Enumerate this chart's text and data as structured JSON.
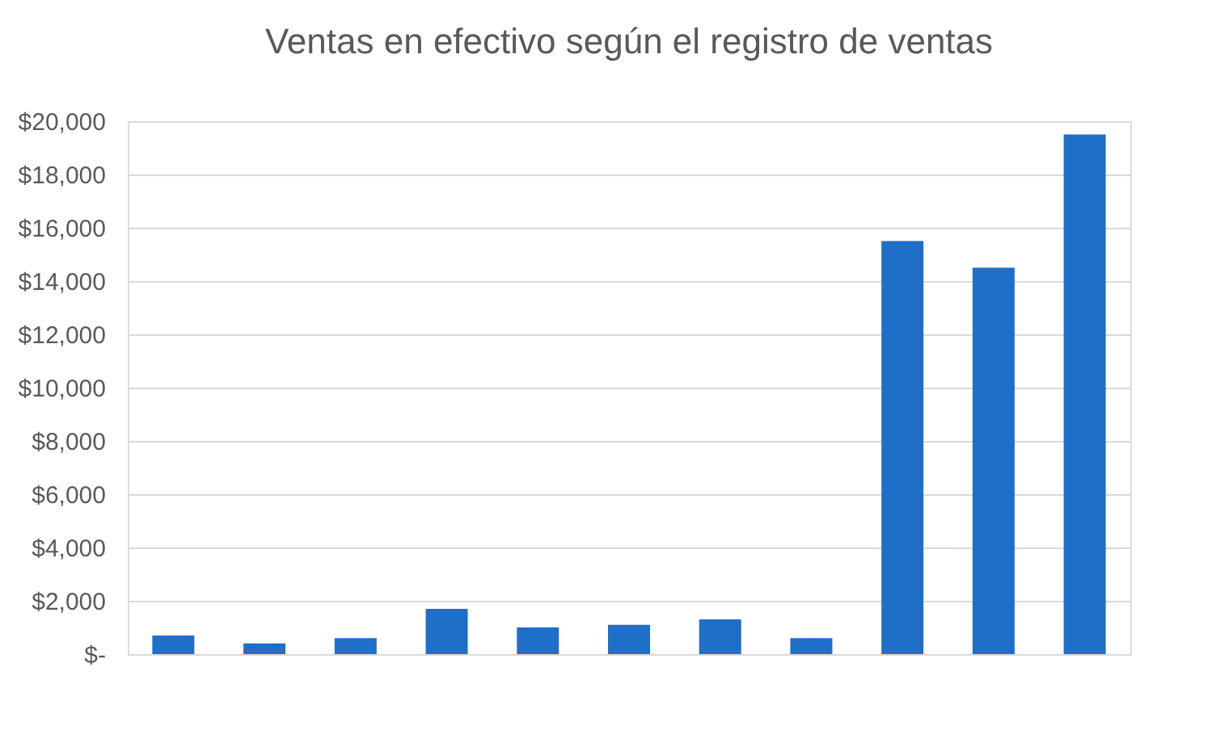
{
  "chart_data": {
    "type": "bar",
    "title": "Ventas en efectivo según el registro de ventas",
    "categories": [
      null,
      null,
      null,
      null,
      null,
      null,
      null,
      null,
      null,
      null,
      null
    ],
    "values": [
      700,
      400,
      600,
      1700,
      1000,
      1100,
      1300,
      600,
      15500,
      14500,
      19500
    ],
    "color": "#1f6fc8",
    "ylim": [
      0,
      20000
    ],
    "yticks": [
      {
        "value": 0,
        "label": "$-"
      },
      {
        "value": 2000,
        "label": "$2,000"
      },
      {
        "value": 4000,
        "label": "$4,000"
      },
      {
        "value": 6000,
        "label": "$6,000"
      },
      {
        "value": 8000,
        "label": "$8,000"
      },
      {
        "value": 10000,
        "label": "$10,000"
      },
      {
        "value": 12000,
        "label": "$12,000"
      },
      {
        "value": 14000,
        "label": "$14,000"
      },
      {
        "value": 16000,
        "label": "$16,000"
      },
      {
        "value": 18000,
        "label": "$18,000"
      },
      {
        "value": 20000,
        "label": "$20,000"
      }
    ],
    "grid": "y",
    "tick_labels": "y"
  }
}
